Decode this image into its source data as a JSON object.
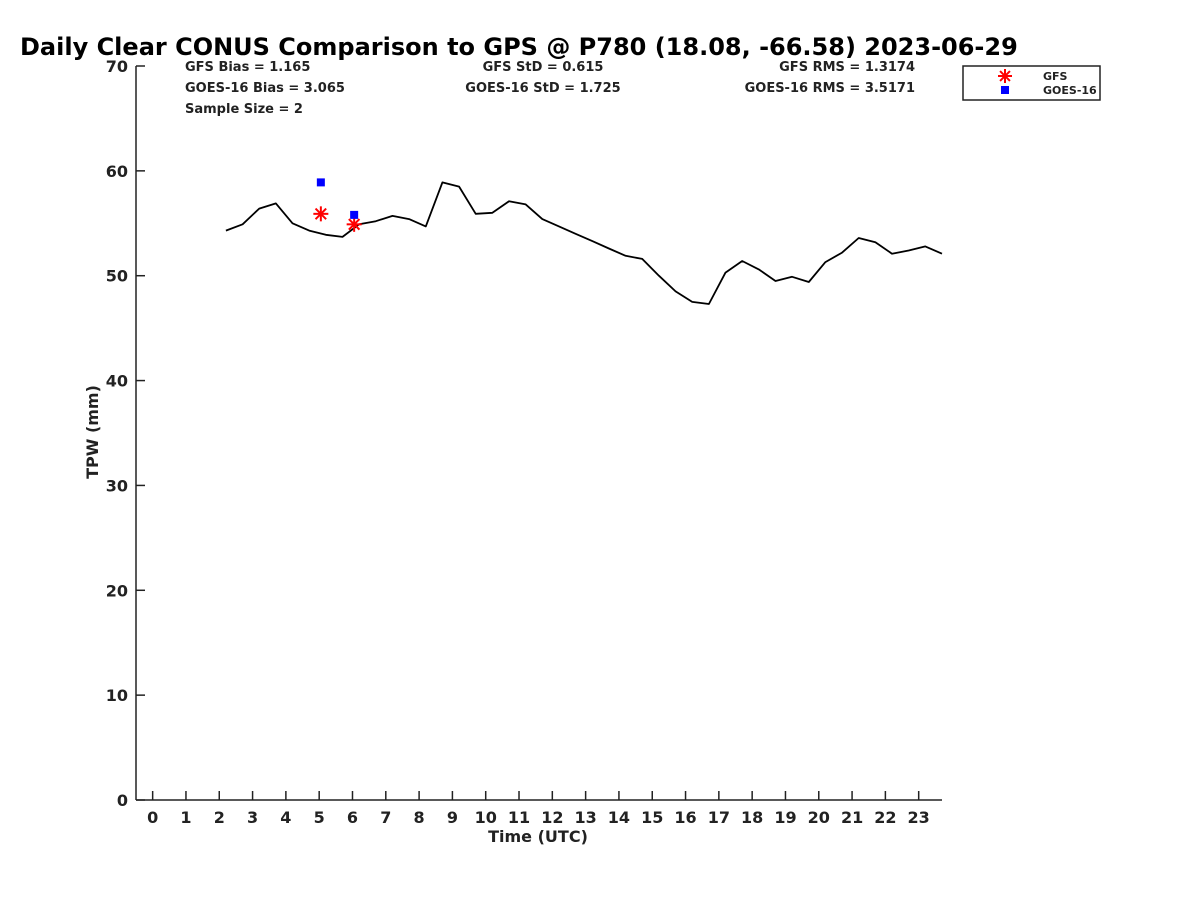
{
  "chart_data": {
    "type": "scatter",
    "title": "Daily Clear CONUS Comparison to GPS @ P780 (18.08, -66.58) 2023-06-29",
    "xlabel": "Time (UTC)",
    "ylabel": "TPW (mm)",
    "xlim": [
      -0.5,
      23.7
    ],
    "ylim": [
      0,
      70
    ],
    "xticks": [
      "0",
      "1",
      "2",
      "3",
      "4",
      "5",
      "6",
      "7",
      "8",
      "9",
      "10",
      "11",
      "12",
      "13",
      "14",
      "15",
      "16",
      "17",
      "18",
      "19",
      "20",
      "21",
      "22",
      "23"
    ],
    "yticks": [
      "0",
      "10",
      "20",
      "30",
      "40",
      "50",
      "60",
      "70"
    ],
    "grid": false,
    "legend_position": "top-right",
    "stats": [
      [
        "GFS Bias = 1.165",
        "GFS StD = 0.615",
        "GFS RMS = 1.3174"
      ],
      [
        "GOES-16 Bias = 3.065",
        "GOES-16 StD = 1.725",
        "GOES-16 RMS = 3.5171"
      ],
      [
        "Sample Size = 2"
      ]
    ],
    "gps_line": {
      "color": "#000000",
      "x": [
        2.2,
        2.7,
        3.2,
        3.7,
        4.2,
        4.7,
        5.2,
        5.7,
        6.2,
        6.7,
        7.2,
        7.7,
        8.2,
        8.7,
        9.2,
        9.7,
        10.2,
        10.7,
        11.2,
        11.7,
        12.2,
        12.7,
        13.2,
        13.7,
        14.2,
        14.7,
        15.2,
        15.7,
        16.2,
        16.7,
        17.2,
        17.7,
        18.2,
        18.7,
        19.2,
        19.7,
        20.2,
        20.7,
        21.2,
        21.7,
        22.2,
        22.7,
        23.2,
        23.7
      ],
      "y": [
        54.3,
        54.9,
        56.4,
        56.9,
        55.0,
        54.3,
        53.9,
        53.7,
        54.9,
        55.2,
        55.7,
        55.4,
        54.7,
        58.9,
        58.5,
        55.9,
        56.0,
        57.1,
        56.8,
        55.4,
        54.7,
        54.0,
        53.3,
        52.6,
        51.9,
        51.6,
        50.0,
        48.5,
        47.5,
        47.3,
        50.3,
        51.4,
        50.6,
        49.5,
        49.9,
        49.4,
        51.3,
        52.2,
        53.6,
        53.2,
        52.1,
        52.4,
        52.8,
        52.1
      ]
    },
    "series": [
      {
        "name": "GFS",
        "marker": "asterisk",
        "color": "#ff0000",
        "x": [
          5.05,
          6.05
        ],
        "y": [
          55.9,
          54.9
        ]
      },
      {
        "name": "GOES-16",
        "marker": "square",
        "color": "#0000ff",
        "x": [
          5.05,
          6.05
        ],
        "y": [
          58.9,
          55.8
        ]
      }
    ]
  }
}
